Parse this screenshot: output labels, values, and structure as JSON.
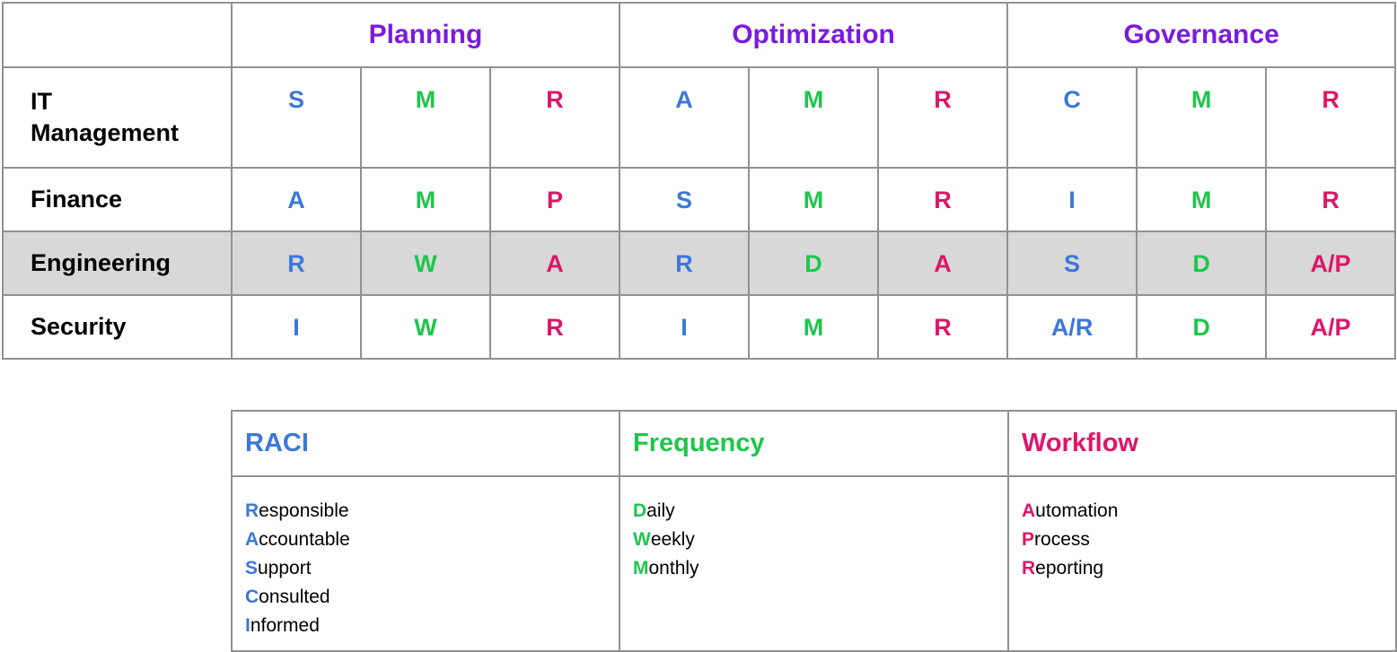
{
  "colors": {
    "purple": "#7A1BDF",
    "blue": "#3C78D8",
    "green": "#1EC64C",
    "pink": "#DB1768",
    "highlight_row_bg": "#D8D8D8",
    "border": "#919191",
    "text": "#000000",
    "background": "#FFFFFF"
  },
  "matrix": {
    "corner_label": "",
    "groups": [
      {
        "label": "Planning"
      },
      {
        "label": "Optimization"
      },
      {
        "label": "Governance"
      }
    ],
    "rows": [
      {
        "label": "IT\nManagement",
        "highlighted": false,
        "cells": [
          {
            "text": "S",
            "color": "blue"
          },
          {
            "text": "M",
            "color": "green"
          },
          {
            "text": "R",
            "color": "pink"
          },
          {
            "text": "A",
            "color": "blue"
          },
          {
            "text": "M",
            "color": "green"
          },
          {
            "text": "R",
            "color": "pink"
          },
          {
            "text": "C",
            "color": "blue"
          },
          {
            "text": "M",
            "color": "green"
          },
          {
            "text": "R",
            "color": "pink"
          }
        ]
      },
      {
        "label": "Finance",
        "highlighted": false,
        "cells": [
          {
            "text": "A",
            "color": "blue"
          },
          {
            "text": "M",
            "color": "green"
          },
          {
            "text": "P",
            "color": "pink"
          },
          {
            "text": "S",
            "color": "blue"
          },
          {
            "text": "M",
            "color": "green"
          },
          {
            "text": "R",
            "color": "pink"
          },
          {
            "text": "I",
            "color": "blue"
          },
          {
            "text": "M",
            "color": "green"
          },
          {
            "text": "R",
            "color": "pink"
          }
        ]
      },
      {
        "label": "Engineering",
        "highlighted": true,
        "cells": [
          {
            "text": "R",
            "color": "blue"
          },
          {
            "text": "W",
            "color": "green"
          },
          {
            "text": "A",
            "color": "pink"
          },
          {
            "text": "R",
            "color": "blue"
          },
          {
            "text": "D",
            "color": "green"
          },
          {
            "text": "A",
            "color": "pink"
          },
          {
            "text": "S",
            "color": "blue"
          },
          {
            "text": "D",
            "color": "green"
          },
          {
            "text": "A/P",
            "color": "pink"
          }
        ]
      },
      {
        "label": "Security",
        "highlighted": false,
        "cells": [
          {
            "text": "I",
            "color": "blue"
          },
          {
            "text": "W",
            "color": "green"
          },
          {
            "text": "R",
            "color": "pink"
          },
          {
            "text": "I",
            "color": "blue"
          },
          {
            "text": "M",
            "color": "green"
          },
          {
            "text": "R",
            "color": "pink"
          },
          {
            "text": "A/R",
            "color": "blue"
          },
          {
            "text": "D",
            "color": "green"
          },
          {
            "text": "A/P",
            "color": "pink"
          }
        ]
      }
    ]
  },
  "legend": {
    "columns": [
      {
        "title": "RACI",
        "color": "blue",
        "items": [
          "Responsible",
          "Accountable",
          "Support",
          "Consulted",
          "Informed"
        ]
      },
      {
        "title": "Frequency",
        "color": "green",
        "items": [
          "Daily",
          "Weekly",
          "Monthly"
        ]
      },
      {
        "title": "Workflow",
        "color": "pink",
        "items": [
          "Automation",
          "Process",
          "Reporting"
        ]
      }
    ]
  }
}
